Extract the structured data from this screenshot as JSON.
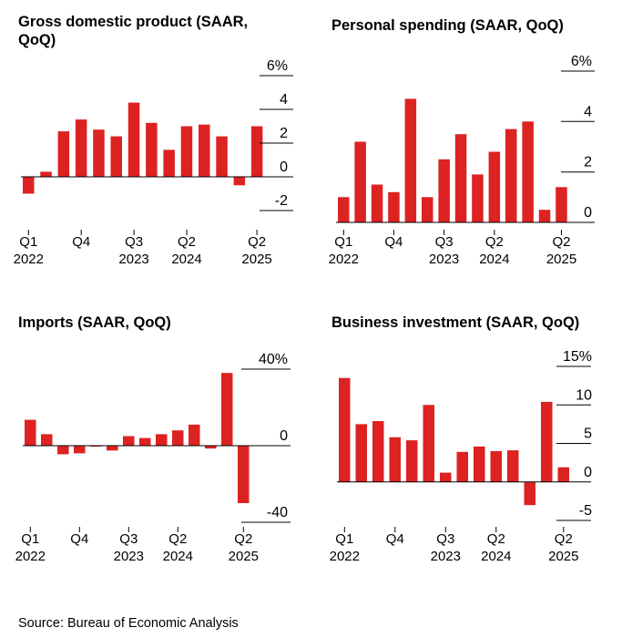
{
  "source": "Source: Bureau of Economic Analysis",
  "colors": {
    "bar": "#dd2222",
    "axis": "#000000"
  },
  "chart_data": [
    {
      "type": "bar",
      "title": "Gross domestic product (SAAR, QoQ)",
      "categories": [
        "Q1 2022",
        "Q2 2022",
        "Q3 2022",
        "Q4 2022",
        "Q1 2023",
        "Q2 2023",
        "Q3 2023",
        "Q4 2023",
        "Q1 2024",
        "Q2 2024",
        "Q3 2024",
        "Q4 2024",
        "Q1 2025",
        "Q2 2025"
      ],
      "values": [
        -1.0,
        0.3,
        2.7,
        3.4,
        2.8,
        2.4,
        4.4,
        3.2,
        1.6,
        3.0,
        3.1,
        2.4,
        -0.5,
        3.0
      ],
      "ylim": [
        -2,
        6
      ],
      "yticks": [
        6,
        4,
        2,
        0,
        -2
      ],
      "ytick_labels": [
        "6%",
        "4",
        "2",
        "0",
        "-2"
      ],
      "xtick_labels": [
        {
          "index": 0,
          "line1": "Q1",
          "line2": "2022"
        },
        {
          "index": 3,
          "line1": "Q4",
          "line2": ""
        },
        {
          "index": 6,
          "line1": "Q3",
          "line2": "2023"
        },
        {
          "index": 9,
          "line1": "Q2",
          "line2": "2024"
        },
        {
          "index": 13,
          "line1": "Q2",
          "line2": "2025"
        }
      ]
    },
    {
      "type": "bar",
      "title": "Personal spending (SAAR, QoQ)",
      "categories": [
        "Q1 2022",
        "Q2 2022",
        "Q3 2022",
        "Q4 2022",
        "Q1 2023",
        "Q2 2023",
        "Q3 2023",
        "Q4 2023",
        "Q1 2024",
        "Q2 2024",
        "Q3 2024",
        "Q4 2024",
        "Q1 2025",
        "Q2 2025"
      ],
      "values": [
        1.0,
        3.2,
        1.5,
        1.2,
        4.9,
        1.0,
        2.5,
        3.5,
        1.9,
        2.8,
        3.7,
        4.0,
        0.5,
        1.4
      ],
      "ylim": [
        0,
        6
      ],
      "yticks": [
        6,
        4,
        2,
        0
      ],
      "ytick_labels": [
        "6%",
        "4",
        "2",
        "0"
      ],
      "xtick_labels": [
        {
          "index": 0,
          "line1": "Q1",
          "line2": "2022"
        },
        {
          "index": 3,
          "line1": "Q4",
          "line2": ""
        },
        {
          "index": 6,
          "line1": "Q3",
          "line2": "2023"
        },
        {
          "index": 9,
          "line1": "Q2",
          "line2": "2024"
        },
        {
          "index": 13,
          "line1": "Q2",
          "line2": "2025"
        }
      ]
    },
    {
      "type": "bar",
      "title": "Imports (SAAR, QoQ)",
      "categories": [
        "Q1 2022",
        "Q2 2022",
        "Q3 2022",
        "Q4 2022",
        "Q1 2023",
        "Q2 2023",
        "Q3 2023",
        "Q4 2023",
        "Q1 2024",
        "Q2 2024",
        "Q3 2024",
        "Q4 2024",
        "Q1 2025",
        "Q2 2025"
      ],
      "values": [
        13.5,
        6.0,
        -4.5,
        -4.0,
        -0.5,
        -2.5,
        5.0,
        4.0,
        6.0,
        8.0,
        11.0,
        -1.5,
        38.0,
        -30.0
      ],
      "ylim": [
        -40,
        40
      ],
      "yticks": [
        40,
        0,
        -40
      ],
      "ytick_labels": [
        "40%",
        "0",
        "-40"
      ],
      "xtick_labels": [
        {
          "index": 0,
          "line1": "Q1",
          "line2": "2022"
        },
        {
          "index": 3,
          "line1": "Q4",
          "line2": ""
        },
        {
          "index": 6,
          "line1": "Q3",
          "line2": "2023"
        },
        {
          "index": 9,
          "line1": "Q2",
          "line2": "2024"
        },
        {
          "index": 13,
          "line1": "Q2",
          "line2": "2025"
        }
      ]
    },
    {
      "type": "bar",
      "title": "Business investment (SAAR, QoQ)",
      "categories": [
        "Q1 2022",
        "Q2 2022",
        "Q3 2022",
        "Q4 2022",
        "Q1 2023",
        "Q2 2023",
        "Q3 2023",
        "Q4 2023",
        "Q1 2024",
        "Q2 2024",
        "Q3 2024",
        "Q4 2024",
        "Q1 2025",
        "Q2 2025"
      ],
      "values": [
        13.5,
        7.5,
        7.9,
        5.8,
        5.4,
        10.0,
        1.2,
        3.9,
        4.6,
        4.0,
        4.1,
        -3.0,
        10.4,
        1.9
      ],
      "ylim": [
        -5,
        15
      ],
      "yticks": [
        15,
        10,
        5,
        0,
        -5
      ],
      "ytick_labels": [
        "15%",
        "10",
        "5",
        "0",
        "-5"
      ],
      "xtick_labels": [
        {
          "index": 0,
          "line1": "Q1",
          "line2": "2022"
        },
        {
          "index": 3,
          "line1": "Q4",
          "line2": ""
        },
        {
          "index": 6,
          "line1": "Q3",
          "line2": "2023"
        },
        {
          "index": 9,
          "line1": "Q2",
          "line2": "2024"
        },
        {
          "index": 13,
          "line1": "Q2",
          "line2": "2025"
        }
      ]
    }
  ]
}
